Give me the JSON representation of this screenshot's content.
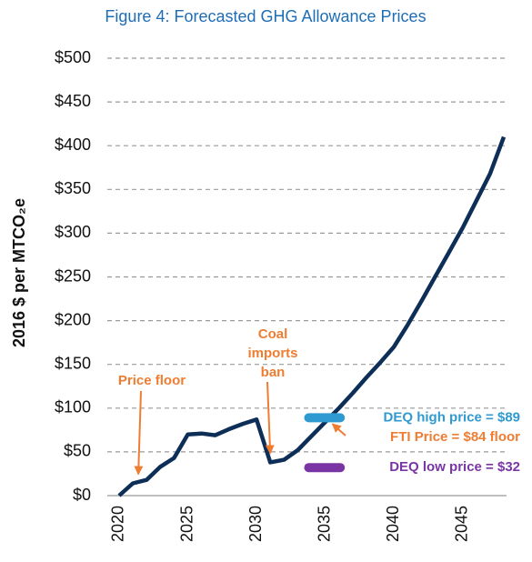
{
  "chart_data": {
    "type": "line",
    "title": "Figure 4: Forecasted GHG Allowance Prices",
    "ylabel": "2016 $ per MTCO₂e",
    "x": [
      2020,
      2021,
      2022,
      2023,
      2024,
      2025,
      2026,
      2027,
      2028,
      2029,
      2030,
      2031,
      2032,
      2033,
      2034,
      2035,
      2036,
      2037,
      2038,
      2039,
      2040,
      2041,
      2042,
      2043,
      2044,
      2045,
      2046,
      2047,
      2048
    ],
    "series": [
      {
        "color": "#0d2e57",
        "values": [
          0,
          14,
          18,
          33,
          43,
          70,
          71,
          69,
          76,
          82,
          87,
          38,
          41,
          52,
          68,
          84,
          100,
          117,
          135,
          152,
          170,
          195,
          222,
          250,
          278,
          306,
          337,
          368,
          410
        ]
      }
    ],
    "xlim": [
      2019.14,
      2048.2
    ],
    "xticks": [
      2020,
      2025,
      2030,
      2035,
      2040,
      2045
    ],
    "ylim": [
      0,
      500
    ],
    "yticks": [
      {
        "value": 0,
        "label": "$0"
      },
      {
        "value": 50,
        "label": "$50"
      },
      {
        "value": 100,
        "label": "$100"
      },
      {
        "value": 150,
        "label": "$150"
      },
      {
        "value": 200,
        "label": "$200"
      },
      {
        "value": 250,
        "label": "$250"
      },
      {
        "value": 300,
        "label": "$300"
      },
      {
        "value": 350,
        "label": "$350"
      },
      {
        "value": 400,
        "label": "$400"
      },
      {
        "value": 450,
        "label": "$450"
      },
      {
        "value": 500,
        "label": "$500"
      }
    ],
    "grid": true,
    "annotations": [
      {
        "lines": [
          "Price floor"
        ],
        "x": 2021,
        "color": "#ef7d31"
      },
      {
        "lines": [
          "Coal",
          "imports",
          "ban"
        ],
        "x": 2031,
        "color": "#ef7d31"
      },
      {
        "lines": [
          "FTI Price = $84 floor"
        ],
        "x": 2035,
        "color": "#ef7d31"
      }
    ],
    "markers": [
      {
        "label": "DEQ high price = $89",
        "value": 89,
        "x": [
          2033.8,
          2036.1
        ],
        "color": "#2f9ad1"
      },
      {
        "label": "DEQ low price = $32",
        "value": 32,
        "x": [
          2033.8,
          2036.1
        ],
        "color": "#7a35a4"
      }
    ]
  }
}
